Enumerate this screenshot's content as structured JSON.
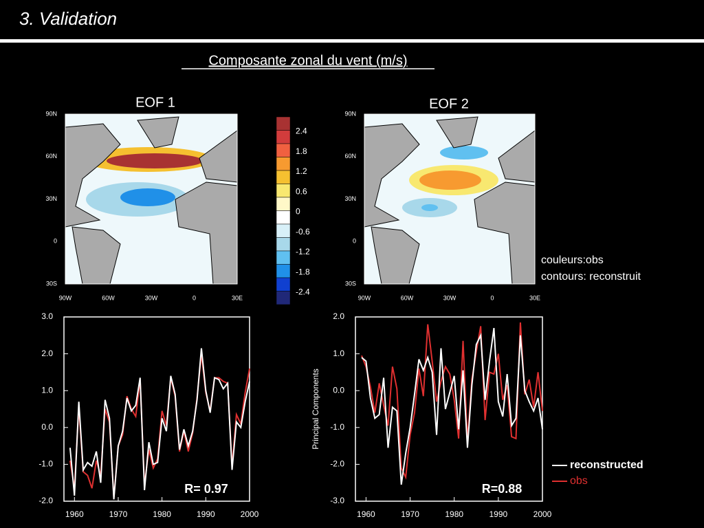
{
  "title": "3. Validation",
  "subtitle": "Composante zonal du vent (m/s)",
  "maps": [
    {
      "title": "EOF 1",
      "lat_labels": [
        "90N",
        "60N",
        "30N",
        "0",
        "30S"
      ],
      "lon_labels": [
        "90W",
        "60W",
        "30W",
        "0",
        "30E"
      ]
    },
    {
      "title": "EOF 2",
      "lat_labels": [
        "90N",
        "60N",
        "30N",
        "0",
        "30S"
      ],
      "lon_labels": [
        "90W",
        "60W",
        "30W",
        "0",
        "30E"
      ]
    }
  ],
  "colorbar": {
    "labels": [
      "2.4",
      "1.8",
      "1.2",
      "0.6",
      "0",
      "-0.6",
      "-1.2",
      "-1.8",
      "-2.4"
    ],
    "colors": [
      "#a83232",
      "#d23c3c",
      "#f06040",
      "#f79a30",
      "#f5c030",
      "#f8e870",
      "#fff8c8",
      "#ffffff",
      "#d8f0f8",
      "#a8d8ea",
      "#60c0f0",
      "#2090e8",
      "#1040d0",
      "#202878"
    ]
  },
  "notes": [
    "couleurs:obs",
    "contours: reconstruit"
  ],
  "chart_data": [
    {
      "type": "line",
      "annotation": "R= 0.97",
      "x": [
        1959,
        1960,
        1961,
        1962,
        1963,
        1964,
        1965,
        1966,
        1967,
        1968,
        1969,
        1970,
        1971,
        1972,
        1973,
        1974,
        1975,
        1976,
        1977,
        1978,
        1979,
        1980,
        1981,
        1982,
        1983,
        1984,
        1985,
        1986,
        1987,
        1988,
        1989,
        1990,
        1991,
        1992,
        1993,
        1994,
        1995,
        1996,
        1997,
        1998,
        1999,
        2000
      ],
      "series": [
        {
          "color": "#e03030",
          "values": [
            -0.9,
            -1.65,
            0.55,
            -1.2,
            -1.3,
            -1.65,
            -0.9,
            -1.3,
            0.5,
            0.15,
            -1.9,
            -0.5,
            -0.2,
            0.85,
            0.5,
            0.3,
            1.3,
            -1.55,
            -0.6,
            -1.1,
            -0.85,
            0.45,
            0.05,
            1.35,
            0.85,
            -0.65,
            -0.1,
            -0.65,
            -0.15,
            0.8,
            2.0,
            0.95,
            0.45,
            1.35,
            1.35,
            1.25,
            1.2,
            -1.05,
            0.35,
            0.1,
            0.95,
            1.6
          ]
        },
        {
          "color": "#ffffff",
          "values": [
            -0.55,
            -1.85,
            0.7,
            -1.15,
            -0.95,
            -1.05,
            -0.65,
            -1.5,
            0.75,
            0.25,
            -1.95,
            -0.5,
            -0.1,
            0.8,
            0.45,
            0.6,
            1.35,
            -1.7,
            -0.4,
            -1.0,
            -0.95,
            0.25,
            -0.1,
            1.4,
            0.9,
            -0.6,
            -0.05,
            -0.5,
            -0.1,
            0.75,
            2.15,
            1.0,
            0.4,
            1.35,
            1.3,
            1.05,
            1.2,
            -1.15,
            0.15,
            0.0,
            0.7,
            1.25
          ]
        }
      ],
      "xlim": [
        1957.6,
        2000
      ],
      "xticks": [
        1960,
        1970,
        1980,
        1990,
        2000
      ],
      "ylim": [
        -2,
        3
      ],
      "yticks": [
        {
          "value": -2,
          "label": "-2.0"
        },
        {
          "value": -1,
          "label": "-1.0"
        },
        {
          "value": 0,
          "label": "0.0"
        },
        {
          "value": 1,
          "label": "1.0"
        },
        {
          "value": 2,
          "label": "2.0"
        },
        {
          "value": 3,
          "label": "3.0"
        }
      ]
    },
    {
      "type": "line",
      "annotation": "R=0.88",
      "ylabel": "Principal Components",
      "x": [
        1959,
        1960,
        1961,
        1962,
        1963,
        1964,
        1965,
        1966,
        1967,
        1968,
        1969,
        1970,
        1971,
        1972,
        1973,
        1974,
        1975,
        1976,
        1977,
        1978,
        1979,
        1980,
        1981,
        1982,
        1983,
        1984,
        1985,
        1986,
        1987,
        1988,
        1989,
        1990,
        1991,
        1992,
        1993,
        1994,
        1995,
        1996,
        1997,
        1998,
        1999,
        2000
      ],
      "series": [
        {
          "name": "obs",
          "color": "#e03030",
          "values": [
            0.95,
            0.65,
            0.1,
            -0.6,
            0.2,
            -0.4,
            -0.95,
            0.65,
            0.05,
            -2.1,
            -2.35,
            -1.2,
            -0.6,
            0.6,
            -0.15,
            1.8,
            0.8,
            -0.3,
            0.25,
            0.65,
            0.45,
            -0.25,
            -1.3,
            1.35,
            -1.35,
            0.3,
            1.05,
            1.75,
            -0.8,
            0.5,
            0.45,
            1.0,
            -0.25,
            0.15,
            -1.25,
            -1.3,
            1.85,
            -0.1,
            0.3,
            -0.45,
            0.5,
            -0.55
          ]
        },
        {
          "name": "reconstructed",
          "color": "#ffffff",
          "values": [
            0.9,
            0.8,
            -0.2,
            -0.75,
            -0.65,
            0.35,
            -1.55,
            -0.45,
            -0.55,
            -2.55,
            -1.7,
            -1.0,
            -0.1,
            0.85,
            0.55,
            0.9,
            0.5,
            -1.2,
            1.15,
            -0.5,
            -0.05,
            0.4,
            -1.05,
            0.55,
            -1.55,
            0.15,
            1.25,
            1.5,
            -0.25,
            0.8,
            1.7,
            -0.3,
            -0.7,
            0.45,
            -0.95,
            -0.75,
            1.5,
            0.0,
            -0.3,
            -0.55,
            -0.2,
            -1.05
          ]
        }
      ],
      "xlim": [
        1957.6,
        2000
      ],
      "xticks": [
        1960,
        1970,
        1980,
        1990,
        2000
      ],
      "ylim": [
        -3,
        2
      ],
      "yticks": [
        {
          "value": -3,
          "label": "-3.0"
        },
        {
          "value": -2,
          "label": "-2.0"
        },
        {
          "value": -1,
          "label": "-1.0"
        },
        {
          "value": 0,
          "label": "0.0"
        },
        {
          "value": 1,
          "label": "1.0"
        },
        {
          "value": 2,
          "label": "2.0"
        }
      ]
    }
  ]
}
